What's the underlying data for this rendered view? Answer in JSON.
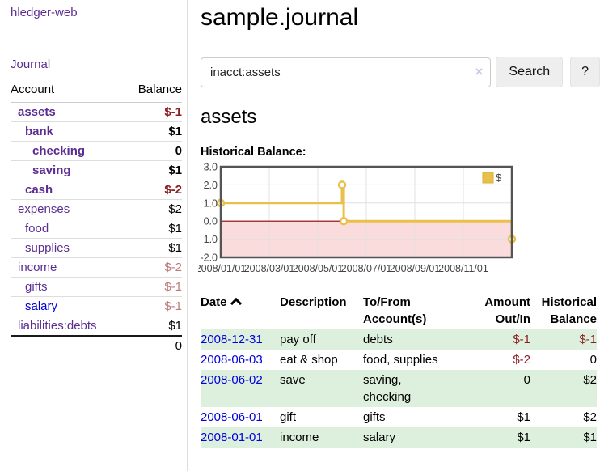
{
  "app": {
    "brand": "hledger-web"
  },
  "sidebar": {
    "nav": {
      "journal": "Journal"
    },
    "accounts": {
      "header": {
        "account": "Account",
        "balance": "Balance"
      },
      "rows": [
        {
          "name": "assets",
          "depth": 0,
          "bold": true,
          "balance": "$-1",
          "neg": "strong"
        },
        {
          "name": "bank",
          "depth": 1,
          "bold": true,
          "balance": "$1",
          "neg": "none"
        },
        {
          "name": "checking",
          "depth": 2,
          "bold": true,
          "balance": "0",
          "neg": "none"
        },
        {
          "name": "saving",
          "depth": 2,
          "bold": true,
          "balance": "$1",
          "neg": "none"
        },
        {
          "name": "cash",
          "depth": 1,
          "bold": true,
          "balance": "$-2",
          "neg": "strong"
        },
        {
          "name": "expenses",
          "depth": 0,
          "bold": false,
          "balance": "$2",
          "neg": "none"
        },
        {
          "name": "food",
          "depth": 1,
          "bold": false,
          "balance": "$1",
          "neg": "none"
        },
        {
          "name": "supplies",
          "depth": 1,
          "bold": false,
          "balance": "$1",
          "neg": "none"
        },
        {
          "name": "income",
          "depth": 0,
          "bold": false,
          "balance": "$-2",
          "neg": "soft"
        },
        {
          "name": "gifts",
          "depth": 1,
          "bold": false,
          "balance": "$-1",
          "neg": "soft"
        },
        {
          "name": "salary",
          "depth": 1,
          "bold": false,
          "balance": "$-1",
          "neg": "soft",
          "link": "unvisited"
        },
        {
          "name": "liabilities:debts",
          "depth": 0,
          "bold": false,
          "balance": "$1",
          "neg": "none"
        }
      ],
      "total": "0"
    }
  },
  "main": {
    "title": "sample.journal",
    "search": {
      "value": "inacct:assets",
      "clear_icon": "×",
      "search_button": "Search",
      "help_button": "?"
    },
    "account_heading": "assets",
    "register": {
      "headers": {
        "date": "Date",
        "sort_icon": "sort-asc",
        "description": "Description",
        "account": "To/From Account(s)",
        "amount": "Amount Out/In",
        "balance": "Historical Balance"
      },
      "rows": [
        {
          "date": "2008-12-31",
          "description": "pay off",
          "accounts": [
            "debts"
          ],
          "amount": "$-1",
          "amount_negative": true,
          "balance": "$-1",
          "balance_negative": true,
          "shaded": true
        },
        {
          "date": "2008-06-03",
          "description": "eat & shop",
          "accounts": [
            "food, supplies"
          ],
          "amount": "$-2",
          "amount_negative": true,
          "balance": "0",
          "balance_negative": false,
          "shaded": false
        },
        {
          "date": "2008-06-02",
          "description": "save",
          "accounts": [
            "saving,",
            "checking"
          ],
          "amount": "0",
          "amount_negative": false,
          "balance": "$2",
          "balance_negative": false,
          "shaded": true
        },
        {
          "date": "2008-06-01",
          "description": "gift",
          "accounts": [
            "gifts"
          ],
          "amount": "$1",
          "amount_negative": false,
          "balance": "$2",
          "balance_negative": false,
          "shaded": false
        },
        {
          "date": "2008-01-01",
          "description": "income",
          "accounts": [
            "salary"
          ],
          "amount": "$1",
          "amount_negative": false,
          "balance": "$1",
          "balance_negative": false,
          "shaded": true
        }
      ]
    }
  },
  "chart_data": {
    "type": "line",
    "title": "Historical Balance:",
    "legend": {
      "label": "$",
      "position": "top-right"
    },
    "step": true,
    "series": [
      {
        "name": "$",
        "color": "#e9c049",
        "points": [
          {
            "date": "2008-01-01",
            "x_months": 0,
            "y": 1
          },
          {
            "date": "2008-06-01",
            "x_months": 5,
            "y": 2
          },
          {
            "date": "2008-06-03",
            "x_months": 5.07,
            "y": 0
          },
          {
            "date": "2008-12-31",
            "x_months": 12,
            "y": -1
          }
        ]
      }
    ],
    "xlim_months": [
      0,
      12
    ],
    "ylim": [
      -2,
      3
    ],
    "y_ticks": [
      {
        "v": 3,
        "label": "3.0"
      },
      {
        "v": 2,
        "label": "2.0"
      },
      {
        "v": 1,
        "label": "1.0"
      },
      {
        "v": 0,
        "label": "0.0"
      },
      {
        "v": -1,
        "label": "-1.0"
      },
      {
        "v": -2,
        "label": "-2.0"
      }
    ],
    "x_ticks": [
      {
        "m": 0,
        "label": "2008/01/01"
      },
      {
        "m": 2,
        "label": "2008/03/01"
      },
      {
        "m": 4,
        "label": "2008/05/01"
      },
      {
        "m": 6,
        "label": "2008/07/01"
      },
      {
        "m": 8,
        "label": "2008/09/01"
      },
      {
        "m": 10,
        "label": "2008/11/01"
      }
    ],
    "grid": true,
    "negative_region_fill": "#fbdcdc",
    "zero_line_color": "#8b0000"
  },
  "colors": {
    "link_purple": "#5c2d91",
    "link_blue": "#0000dd",
    "negative_strong": "#8d1f24",
    "negative_soft": "#bb7b7b",
    "row_shade_green": "#ddf0dd",
    "chart_line_gold": "#e9c049",
    "chart_frame_gray": "#545454",
    "grid_gray": "#e0e0e0"
  }
}
